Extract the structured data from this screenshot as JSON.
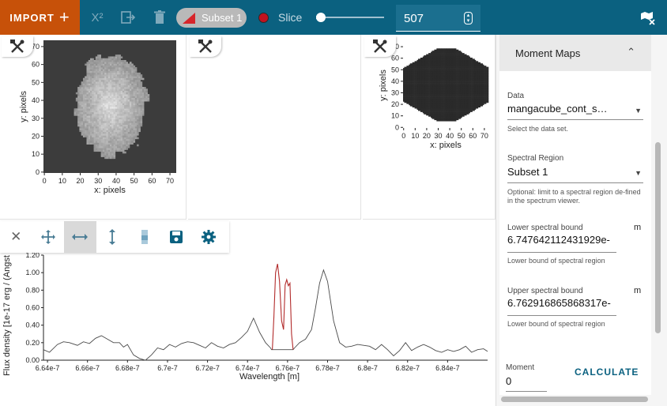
{
  "toolbar": {
    "import_label": "IMPORT",
    "import_icon": "plus-icon",
    "chi2_label": "X²",
    "subset_label": "Subset 1",
    "slice_label": "Slice",
    "slice_value": "507",
    "slider_level": 0.05
  },
  "viewers": {
    "xlabel": "x: pixels",
    "ylabel": "y: pixels",
    "xticks": [
      "0",
      "10",
      "20",
      "30",
      "40",
      "50",
      "60",
      "70"
    ],
    "yticks": [
      "0",
      "10",
      "20",
      "30",
      "40",
      "50",
      "60",
      "70"
    ]
  },
  "spectrum": {
    "toolbar_icons": [
      "close-icon",
      "pan-zoom-icon",
      "horizontal-zoom-icon",
      "vertical-zoom-icon",
      "colorbar-icon",
      "save-icon",
      "settings-icon"
    ],
    "chart_data": {
      "type": "line",
      "xlabel": "Wavelength [m]",
      "ylabel": "Flux density [1e-17 erg / (Angst",
      "ylim": [
        0.0,
        1.2
      ],
      "xlim": [
        6.638e-07,
        6.86e-07
      ],
      "xtick_labels": [
        "6.64e-7",
        "6.66e-7",
        "6.68e-7",
        "6.7e-7",
        "6.72e-7",
        "6.74e-7",
        "6.76e-7",
        "6.78e-7",
        "6.8e-7",
        "6.82e-7",
        "6.84e-7"
      ],
      "ytick_labels": [
        "0.00",
        "0.20",
        "0.40",
        "0.60",
        "0.80",
        "1.00",
        "1.20"
      ],
      "series": [
        {
          "color": "#4a4a4a",
          "x": [
            6.638e-07,
            6.641e-07,
            6.645e-07,
            6.648e-07,
            6.651e-07,
            6.655e-07,
            6.658e-07,
            6.661e-07,
            6.664e-07,
            6.667e-07,
            6.67e-07,
            6.673e-07,
            6.676e-07,
            6.678e-07,
            6.68e-07,
            6.683e-07,
            6.686e-07,
            6.689e-07,
            6.692e-07,
            6.695e-07,
            6.698e-07,
            6.701e-07,
            6.704e-07,
            6.707e-07,
            6.71e-07,
            6.713e-07,
            6.716e-07,
            6.719e-07,
            6.722e-07,
            6.725e-07,
            6.728e-07,
            6.731e-07,
            6.734e-07,
            6.737e-07,
            6.74e-07,
            6.743e-07,
            6.746e-07,
            6.749e-07,
            6.7515e-07,
            6.752e-07,
            6.7524e-07,
            6.7628e-07,
            6.7635e-07,
            6.766e-07,
            6.769e-07,
            6.772e-07,
            6.774e-07,
            6.776e-07,
            6.778e-07,
            6.78e-07,
            6.783e-07,
            6.786e-07,
            6.789e-07,
            6.792e-07,
            6.795e-07,
            6.798e-07,
            6.801e-07,
            6.804e-07,
            6.807e-07,
            6.81e-07,
            6.813e-07,
            6.816e-07,
            6.819e-07,
            6.822e-07,
            6.825e-07,
            6.828e-07,
            6.831e-07,
            6.834e-07,
            6.837e-07,
            6.84e-07,
            6.843e-07,
            6.846e-07,
            6.849e-07,
            6.852e-07,
            6.855e-07,
            6.858e-07,
            6.86e-07
          ],
          "y": [
            0.12,
            0.09,
            0.18,
            0.21,
            0.2,
            0.17,
            0.21,
            0.19,
            0.25,
            0.28,
            0.24,
            0.2,
            0.2,
            0.15,
            0.18,
            0.06,
            0.02,
            0.0,
            0.06,
            0.14,
            0.12,
            0.18,
            0.15,
            0.19,
            0.21,
            0.2,
            0.17,
            0.14,
            0.2,
            0.16,
            0.14,
            0.18,
            0.2,
            0.26,
            0.33,
            0.48,
            0.32,
            0.2,
            0.14,
            0.12,
            0.12,
            0.12,
            0.14,
            0.2,
            0.24,
            0.35,
            0.6,
            0.88,
            1.03,
            0.9,
            0.45,
            0.2,
            0.15,
            0.16,
            0.18,
            0.17,
            0.16,
            0.12,
            0.18,
            0.12,
            0.05,
            0.11,
            0.2,
            0.11,
            0.15,
            0.18,
            0.15,
            0.11,
            0.09,
            0.12,
            0.1,
            0.12,
            0.16,
            0.09,
            0.12,
            0.13,
            0.1
          ]
        },
        {
          "color": "#b22b2b",
          "x": [
            6.7524e-07,
            6.7532e-07,
            6.754e-07,
            6.755e-07,
            6.756e-07,
            6.757e-07,
            6.758e-07,
            6.7588e-07,
            6.7596e-07,
            6.7604e-07,
            6.7612e-07,
            6.762e-07,
            6.7628e-07
          ],
          "y": [
            0.12,
            0.5,
            1.0,
            1.1,
            0.9,
            0.45,
            0.35,
            0.86,
            0.92,
            0.85,
            0.88,
            0.3,
            0.12
          ]
        }
      ]
    }
  },
  "plugin": {
    "title": "Moment Maps",
    "data_label": "Data",
    "data_value": "mangacube_cont_s…",
    "data_hint": "Select the data set.",
    "region_label": "Spectral Region",
    "region_value": "Subset 1",
    "region_hint": "Optional: limit to a spectral region de-fined in the spectrum viewer.",
    "lower_label": "Lower spectral bound",
    "lower_value": "6.747642112431929e-",
    "lower_unit": "m",
    "lower_hint": "Lower bound of spectral region",
    "upper_label": "Upper spectral bound",
    "upper_value": "6.762916865868317e-",
    "upper_unit": "m",
    "upper_hint": "Lower bound of spectral region",
    "moment_label": "Moment",
    "moment_value": "0",
    "calculate_label": "CALCULATE"
  },
  "colors": {
    "topbar": "#0b6180",
    "import": "#c75109",
    "spectrum_line": "#4a4a4a",
    "subset_line": "#b22b2b"
  }
}
